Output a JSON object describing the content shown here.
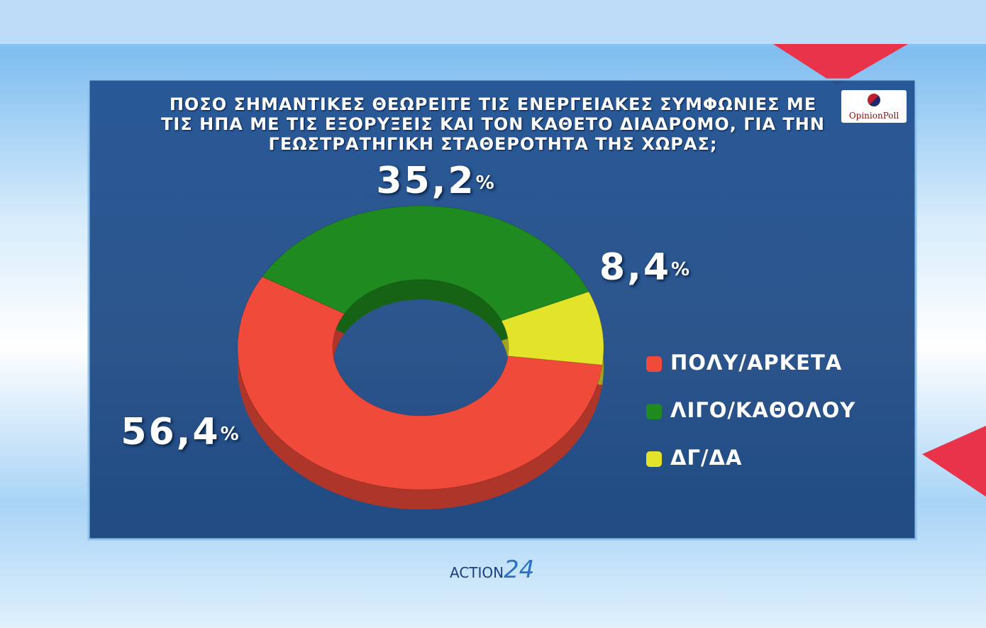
{
  "chart_data": {
    "type": "pie",
    "donut": true,
    "title": "ΠΟΣΟ ΣΗΜΑΝΤΙΚΕΣ ΘΕΩΡΕΙΤΕ ΤΙΣ ΕΝΕΡΓΕΙΑΚΕΣ ΣΥΜΦΩΝΙΕΣ ΜΕ ΤΙΣ ΗΠΑ ΜΕ ΤΙΣ ΕΞΟΡΥΞΕΙΣ ΚΑΙ ΤΟΝ ΚΑΘΕΤΟ ΔΙΑΔΡΟΜΟ, ΓΙΑ ΤΗΝ ΓΕΩΣΤΡΑΤΗΓΙΚΗ ΣΤΑΘΕΡΟΤΗΤΑ ΤΗΣ ΧΩΡΑΣ;",
    "categories": [
      "ΠΟΛΥ/ΑΡΚΕΤΑ",
      "ΛΙΓΟ/ΚΑΘΟΛΟΥ",
      "ΔΓ/ΔΑ"
    ],
    "values": [
      56.4,
      35.2,
      8.4
    ],
    "value_labels": [
      "56,4%",
      "35,2%",
      "8,4%"
    ],
    "colors": [
      "#f04a3a",
      "#1f8a1f",
      "#e3e32a"
    ]
  },
  "branding": {
    "pollster": "OpinionPoll",
    "channel": "ACTION",
    "channel_number": "24"
  }
}
